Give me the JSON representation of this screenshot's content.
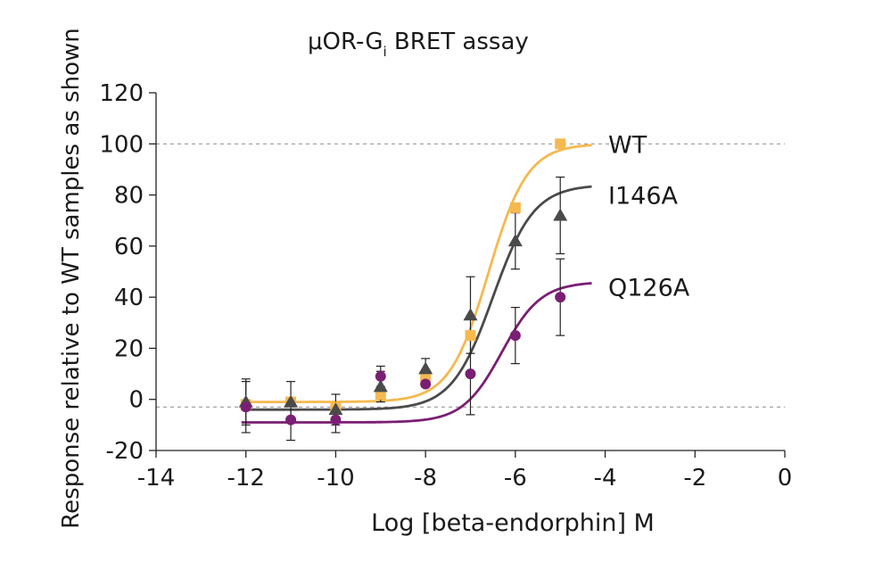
{
  "chart_data": {
    "type": "scatter",
    "title": "μOR-G",
    "title_subscript": "i",
    "title_suffix": " BRET assay",
    "xlabel": "Log [beta-endorphin] M",
    "ylabel": "Response relative to WT samples as shown",
    "xlim": [
      -14,
      0
    ],
    "ylim": [
      -20,
      120
    ],
    "xticks": [
      -14,
      -12,
      -10,
      -8,
      -6,
      -4,
      -2,
      0
    ],
    "yticks": [
      -20,
      0,
      20,
      40,
      60,
      80,
      100,
      120
    ],
    "xtick_labels": [
      "-14",
      "-12",
      "-10",
      "-8",
      "-6",
      "-4",
      "-2",
      "0"
    ],
    "ytick_labels": [
      "-20",
      "0",
      "20",
      "40",
      "60",
      "80",
      "100",
      "120"
    ],
    "reference_lines": [
      100,
      -3
    ],
    "grid": false,
    "series": [
      {
        "name": "WT",
        "marker": "square",
        "color": "#f5b94f",
        "x": [
          -12,
          -11,
          -10,
          -9,
          -8,
          -7,
          -6,
          -5
        ],
        "y": [
          -2,
          -1,
          -3,
          2,
          9,
          25,
          75,
          100
        ],
        "err": [
          0,
          0,
          0,
          0,
          0,
          0,
          0,
          0
        ],
        "curve": {
          "bottom": -1,
          "top": 100,
          "ec50": -6.6,
          "hill": 1.0
        }
      },
      {
        "name": "I146A",
        "marker": "triangle",
        "color": "#4a4a4a",
        "x": [
          -12,
          -11,
          -10,
          -9,
          -8,
          -7,
          -6,
          -5
        ],
        "y": [
          -1,
          -1,
          -4,
          5,
          12,
          33,
          62,
          72
        ],
        "err": [
          9,
          8,
          6,
          6,
          4,
          15,
          11,
          15
        ],
        "curve": {
          "bottom": -4,
          "top": 84,
          "ec50": -6.5,
          "hill": 0.95
        }
      },
      {
        "name": "Q126A",
        "marker": "circle",
        "color": "#7a1f73",
        "x": [
          -12,
          -11,
          -10,
          -9,
          -8,
          -7,
          -6,
          -5
        ],
        "y": [
          -3,
          -8,
          -8,
          9,
          6,
          10,
          25,
          40
        ],
        "err": [
          10,
          8,
          5,
          4,
          0,
          16,
          11,
          15
        ],
        "curve": {
          "bottom": -9,
          "top": 46,
          "ec50": -6.3,
          "hill": 1.0
        }
      }
    ]
  }
}
